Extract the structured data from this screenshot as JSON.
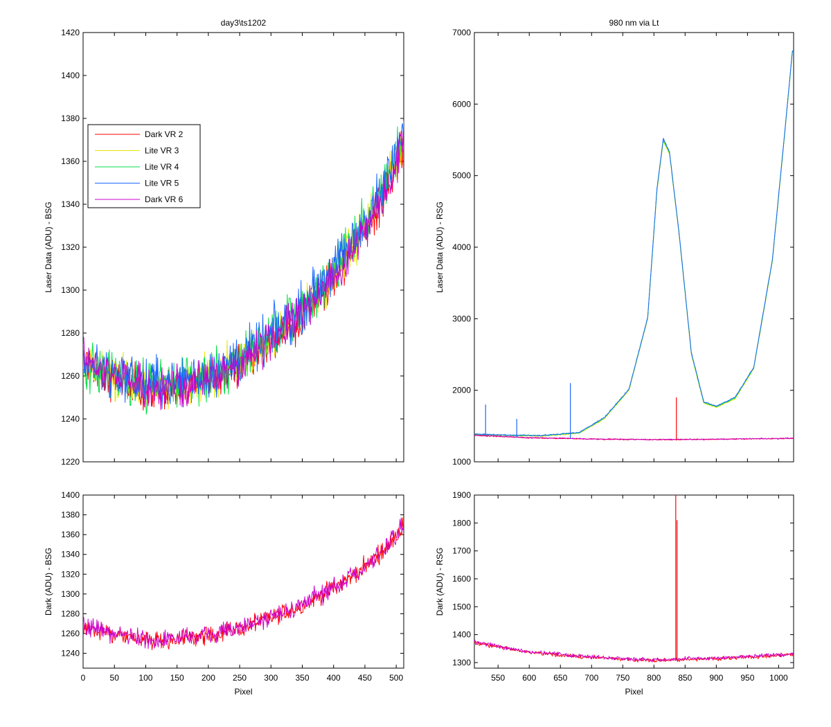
{
  "chart_data": [
    {
      "type": "line",
      "title": "day3\\ts1202",
      "xlabel": "",
      "ylabel": "Laser Data (ADU) - BSG",
      "xlim": [
        0,
        512
      ],
      "ylim": [
        1220,
        1420
      ],
      "yticks": [
        "1220",
        "1240",
        "1260",
        "1280",
        "1300",
        "1320",
        "1340",
        "1360",
        "1380",
        "1400",
        "1420"
      ],
      "xticks_shown": false,
      "legend": {
        "placement": "left",
        "entries": [
          {
            "name": "Dark VR 2",
            "color": "#ff0000"
          },
          {
            "name": "Lite VR 3",
            "color": "#e6e600"
          },
          {
            "name": "Lite VR 4",
            "color": "#00dd44"
          },
          {
            "name": "Lite VR 5",
            "color": "#1a66ff"
          },
          {
            "name": "Dark VR 6",
            "color": "#cc00cc"
          }
        ]
      },
      "series": [
        {
          "name": "Dark VR 2",
          "color": "#ff0000",
          "noise": 9,
          "x": [
            0,
            30,
            60,
            100,
            150,
            200,
            250,
            300,
            350,
            400,
            430,
            460,
            490,
            512
          ],
          "y": [
            1268,
            1262,
            1258,
            1253,
            1254,
            1258,
            1265,
            1276,
            1288,
            1306,
            1318,
            1333,
            1350,
            1370
          ]
        },
        {
          "name": "Lite VR 3",
          "color": "#e6e600",
          "noise": 10,
          "x": [
            0,
            30,
            60,
            100,
            150,
            200,
            250,
            300,
            350,
            400,
            430,
            460,
            490,
            512
          ],
          "y": [
            1266,
            1262,
            1259,
            1254,
            1255,
            1259,
            1266,
            1277,
            1290,
            1308,
            1320,
            1335,
            1352,
            1372
          ]
        },
        {
          "name": "Lite VR 4",
          "color": "#00dd44",
          "noise": 11,
          "x": [
            0,
            30,
            60,
            100,
            150,
            200,
            250,
            300,
            350,
            400,
            430,
            460,
            490,
            512
          ],
          "y": [
            1265,
            1262,
            1259,
            1255,
            1256,
            1260,
            1267,
            1278,
            1291,
            1309,
            1321,
            1336,
            1353,
            1372
          ]
        },
        {
          "name": "Lite VR 5",
          "color": "#1a66ff",
          "noise": 11,
          "x": [
            0,
            30,
            60,
            100,
            150,
            200,
            250,
            300,
            350,
            400,
            430,
            460,
            490,
            512
          ],
          "y": [
            1266,
            1264,
            1261,
            1257,
            1257,
            1261,
            1268,
            1279,
            1292,
            1310,
            1322,
            1337,
            1354,
            1373
          ]
        },
        {
          "name": "Dark VR 6",
          "color": "#cc00cc",
          "noise": 9,
          "x": [
            0,
            30,
            60,
            100,
            150,
            200,
            250,
            300,
            350,
            400,
            430,
            460,
            490,
            512
          ],
          "y": [
            1268,
            1263,
            1259,
            1254,
            1255,
            1259,
            1266,
            1277,
            1289,
            1307,
            1319,
            1334,
            1351,
            1371
          ]
        }
      ]
    },
    {
      "type": "line",
      "title": "980 nm via Lt",
      "xlabel": "",
      "ylabel": "Laser Data (ADU) - RSG",
      "xlim": [
        512,
        1024
      ],
      "ylim": [
        1000,
        7000
      ],
      "yticks": [
        "1000",
        "2000",
        "3000",
        "4000",
        "5000",
        "6000",
        "7000"
      ],
      "xticks_shown": false,
      "series": [
        {
          "name": "Lite VR 3",
          "color": "#e6e600",
          "noise": 8,
          "x": [
            512,
            560,
            620,
            680,
            720,
            760,
            790,
            805,
            815,
            825,
            840,
            860,
            880,
            900,
            930,
            960,
            990,
            1010,
            1022
          ],
          "y": [
            1380,
            1370,
            1360,
            1400,
            1600,
            2000,
            3000,
            4800,
            5480,
            5300,
            4200,
            2500,
            1820,
            1760,
            1880,
            2300,
            3800,
            5600,
            6720
          ]
        },
        {
          "name": "Lite VR 4",
          "color": "#00dd44",
          "noise": 8,
          "x": [
            512,
            560,
            620,
            680,
            720,
            760,
            790,
            805,
            815,
            825,
            840,
            860,
            880,
            900,
            930,
            960,
            990,
            1010,
            1022
          ],
          "y": [
            1385,
            1372,
            1365,
            1405,
            1610,
            2010,
            3010,
            4820,
            5500,
            5320,
            4220,
            2520,
            1830,
            1770,
            1890,
            2310,
            3820,
            5620,
            6730
          ]
        },
        {
          "name": "Lite VR 5",
          "color": "#1a66ff",
          "noise": 8,
          "x": [
            512,
            560,
            620,
            680,
            720,
            760,
            790,
            805,
            815,
            825,
            840,
            860,
            880,
            900,
            930,
            960,
            990,
            1010,
            1022
          ],
          "y": [
            1388,
            1375,
            1368,
            1410,
            1615,
            2015,
            3020,
            4830,
            5520,
            5330,
            4230,
            2530,
            1840,
            1780,
            1900,
            2320,
            3830,
            5630,
            6740
          ]
        },
        {
          "name": "Dark VR 2",
          "color": "#ff0000",
          "noise": 8,
          "x": [
            512,
            600,
            700,
            800,
            900,
            1000,
            1024
          ],
          "y": [
            1370,
            1335,
            1318,
            1310,
            1315,
            1325,
            1330
          ]
        },
        {
          "name": "Dark VR 6",
          "color": "#cc00cc",
          "noise": 8,
          "x": [
            512,
            600,
            700,
            800,
            900,
            1000,
            1024
          ],
          "y": [
            1372,
            1337,
            1320,
            1311,
            1316,
            1326,
            1332
          ]
        }
      ],
      "spikes": [
        {
          "color": "#1a66ff",
          "x": 530,
          "y": 1800
        },
        {
          "color": "#1a66ff",
          "x": 580,
          "y": 1600
        },
        {
          "color": "#1a66ff",
          "x": 666,
          "y": 2100
        },
        {
          "color": "#ff0000",
          "x": 836,
          "y": 1900
        }
      ]
    },
    {
      "type": "line",
      "title": "",
      "xlabel": "Pixel",
      "ylabel": "Dark (ADU) - BSG",
      "xlim": [
        0,
        512
      ],
      "ylim": [
        1225,
        1400
      ],
      "yticks": [
        "1240",
        "1260",
        "1280",
        "1300",
        "1320",
        "1340",
        "1360",
        "1380",
        "1400"
      ],
      "xticks": [
        "0",
        "50",
        "100",
        "150",
        "200",
        "250",
        "300",
        "350",
        "400",
        "450",
        "500"
      ],
      "series": [
        {
          "name": "Dark VR 2",
          "color": "#ff0000",
          "noise": 9,
          "x": [
            0,
            30,
            60,
            100,
            150,
            200,
            250,
            300,
            350,
            400,
            430,
            460,
            490,
            512
          ],
          "y": [
            1268,
            1262,
            1258,
            1253,
            1254,
            1258,
            1265,
            1276,
            1288,
            1306,
            1318,
            1333,
            1350,
            1370
          ]
        },
        {
          "name": "Dark VR 6",
          "color": "#cc00cc",
          "noise": 9,
          "x": [
            0,
            30,
            60,
            100,
            150,
            200,
            250,
            300,
            350,
            400,
            430,
            460,
            490,
            512
          ],
          "y": [
            1268,
            1263,
            1259,
            1254,
            1255,
            1259,
            1266,
            1277,
            1289,
            1307,
            1319,
            1334,
            1351,
            1371
          ]
        }
      ]
    },
    {
      "type": "line",
      "title": "",
      "xlabel": "Pixel",
      "ylabel": "Dark (ADU) - RSG",
      "xlim": [
        512,
        1024
      ],
      "ylim": [
        1280,
        1900
      ],
      "yticks": [
        "1300",
        "1400",
        "1500",
        "1600",
        "1700",
        "1800",
        "1900"
      ],
      "xticks": [
        "550",
        "600",
        "650",
        "700",
        "750",
        "800",
        "850",
        "900",
        "950",
        "1000"
      ],
      "series": [
        {
          "name": "Dark VR 2",
          "color": "#ff0000",
          "noise": 7,
          "x": [
            512,
            600,
            700,
            800,
            900,
            1000,
            1024
          ],
          "y": [
            1372,
            1336,
            1318,
            1308,
            1314,
            1325,
            1330
          ]
        },
        {
          "name": "Dark VR 6",
          "color": "#cc00cc",
          "noise": 7,
          "x": [
            512,
            600,
            700,
            800,
            900,
            1000,
            1024
          ],
          "y": [
            1374,
            1338,
            1320,
            1310,
            1316,
            1327,
            1332
          ]
        }
      ],
      "spikes": [
        {
          "color": "#ff0000",
          "x": 835,
          "y": 1900
        },
        {
          "color": "#ff0000",
          "x": 837,
          "y": 1810
        }
      ]
    }
  ]
}
